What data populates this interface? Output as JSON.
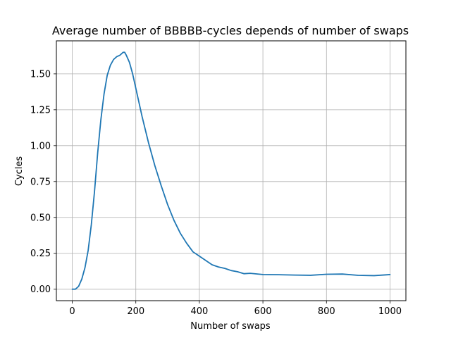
{
  "chart_data": {
    "type": "line",
    "title": "Average number of BBBBB-cycles depends of number of swaps",
    "xlabel": "Number of swaps",
    "ylabel": "Cycles",
    "xlim": [
      -50,
      1050
    ],
    "ylim": [
      -0.08,
      1.73
    ],
    "x_ticks": [
      0,
      200,
      400,
      600,
      800,
      1000
    ],
    "x_tick_labels": [
      "0",
      "200",
      "400",
      "600",
      "800",
      "1000"
    ],
    "y_ticks": [
      0.0,
      0.25,
      0.5,
      0.75,
      1.0,
      1.25,
      1.5
    ],
    "y_tick_labels": [
      "0.00",
      "0.25",
      "0.50",
      "0.75",
      "1.00",
      "1.25",
      "1.50"
    ],
    "grid": true,
    "line_color": "#1f77b4",
    "series": [
      {
        "x": [
          0,
          10,
          20,
          30,
          40,
          50,
          60,
          70,
          80,
          90,
          100,
          110,
          120,
          130,
          140,
          150,
          160,
          165,
          170,
          180,
          190,
          200,
          210,
          220,
          240,
          260,
          280,
          300,
          320,
          340,
          360,
          380,
          400,
          420,
          440,
          460,
          480,
          500,
          520,
          540,
          560,
          600,
          650,
          700,
          750,
          800,
          850,
          900,
          950,
          1000
        ],
        "values": [
          0.0,
          0.0,
          0.02,
          0.07,
          0.15,
          0.27,
          0.45,
          0.68,
          0.95,
          1.18,
          1.36,
          1.49,
          1.56,
          1.6,
          1.62,
          1.63,
          1.65,
          1.65,
          1.63,
          1.58,
          1.5,
          1.4,
          1.3,
          1.2,
          1.02,
          0.86,
          0.72,
          0.59,
          0.48,
          0.39,
          0.32,
          0.26,
          0.23,
          0.2,
          0.17,
          0.155,
          0.145,
          0.13,
          0.12,
          0.115,
          0.11,
          0.105,
          0.1,
          0.1,
          0.1,
          0.1,
          0.1,
          0.1,
          0.1,
          0.1
        ]
      }
    ]
  }
}
